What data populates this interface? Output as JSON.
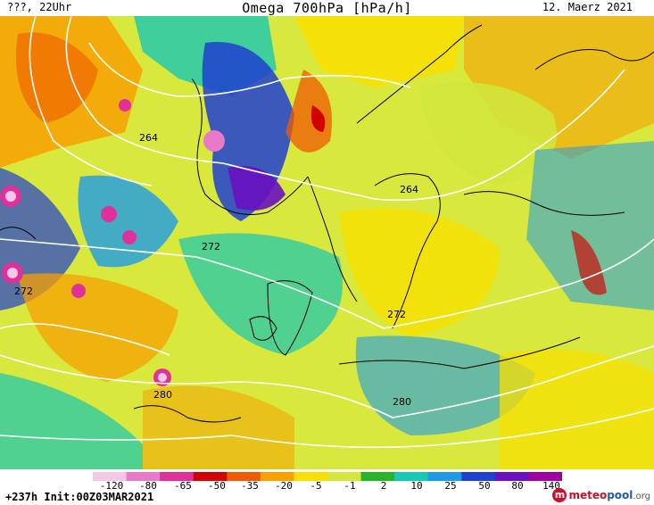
{
  "header": {
    "left": "???, 22Uhr",
    "title": "Omega 700hPa [hPa/h]",
    "date": "12. Maerz 2021"
  },
  "contours": {
    "labels": [
      "264",
      "264",
      "272",
      "272",
      "272",
      "280",
      "280"
    ],
    "color": "#ffffff"
  },
  "legend": {
    "ticks": [
      "-120",
      "-80",
      "-65",
      "-50",
      "-35",
      "-20",
      "-5",
      "-1",
      "2",
      "10",
      "25",
      "50",
      "80",
      "140"
    ],
    "colors": [
      "#f5c8e6",
      "#e87ac8",
      "#e0309a",
      "#d40000",
      "#f05a00",
      "#f8a000",
      "#f8e000",
      "#d2e63c",
      "#28b428",
      "#18c8b4",
      "#1e9be6",
      "#2040d0",
      "#6a10c0",
      "#a000a0"
    ]
  },
  "footer": {
    "run_info": "+237h Init:00Z03MAR2021",
    "brand_part1": "meteo",
    "brand_part2": "pool",
    "brand_part3": ".org"
  },
  "colors": {
    "strong_ascent": "#d40000",
    "moderate_ascent": "#f8a000",
    "weak_motion": "#d2e63c",
    "weak_descent": "#18c8b4",
    "strong_descent": "#2040d0",
    "coastline": "#000000"
  }
}
